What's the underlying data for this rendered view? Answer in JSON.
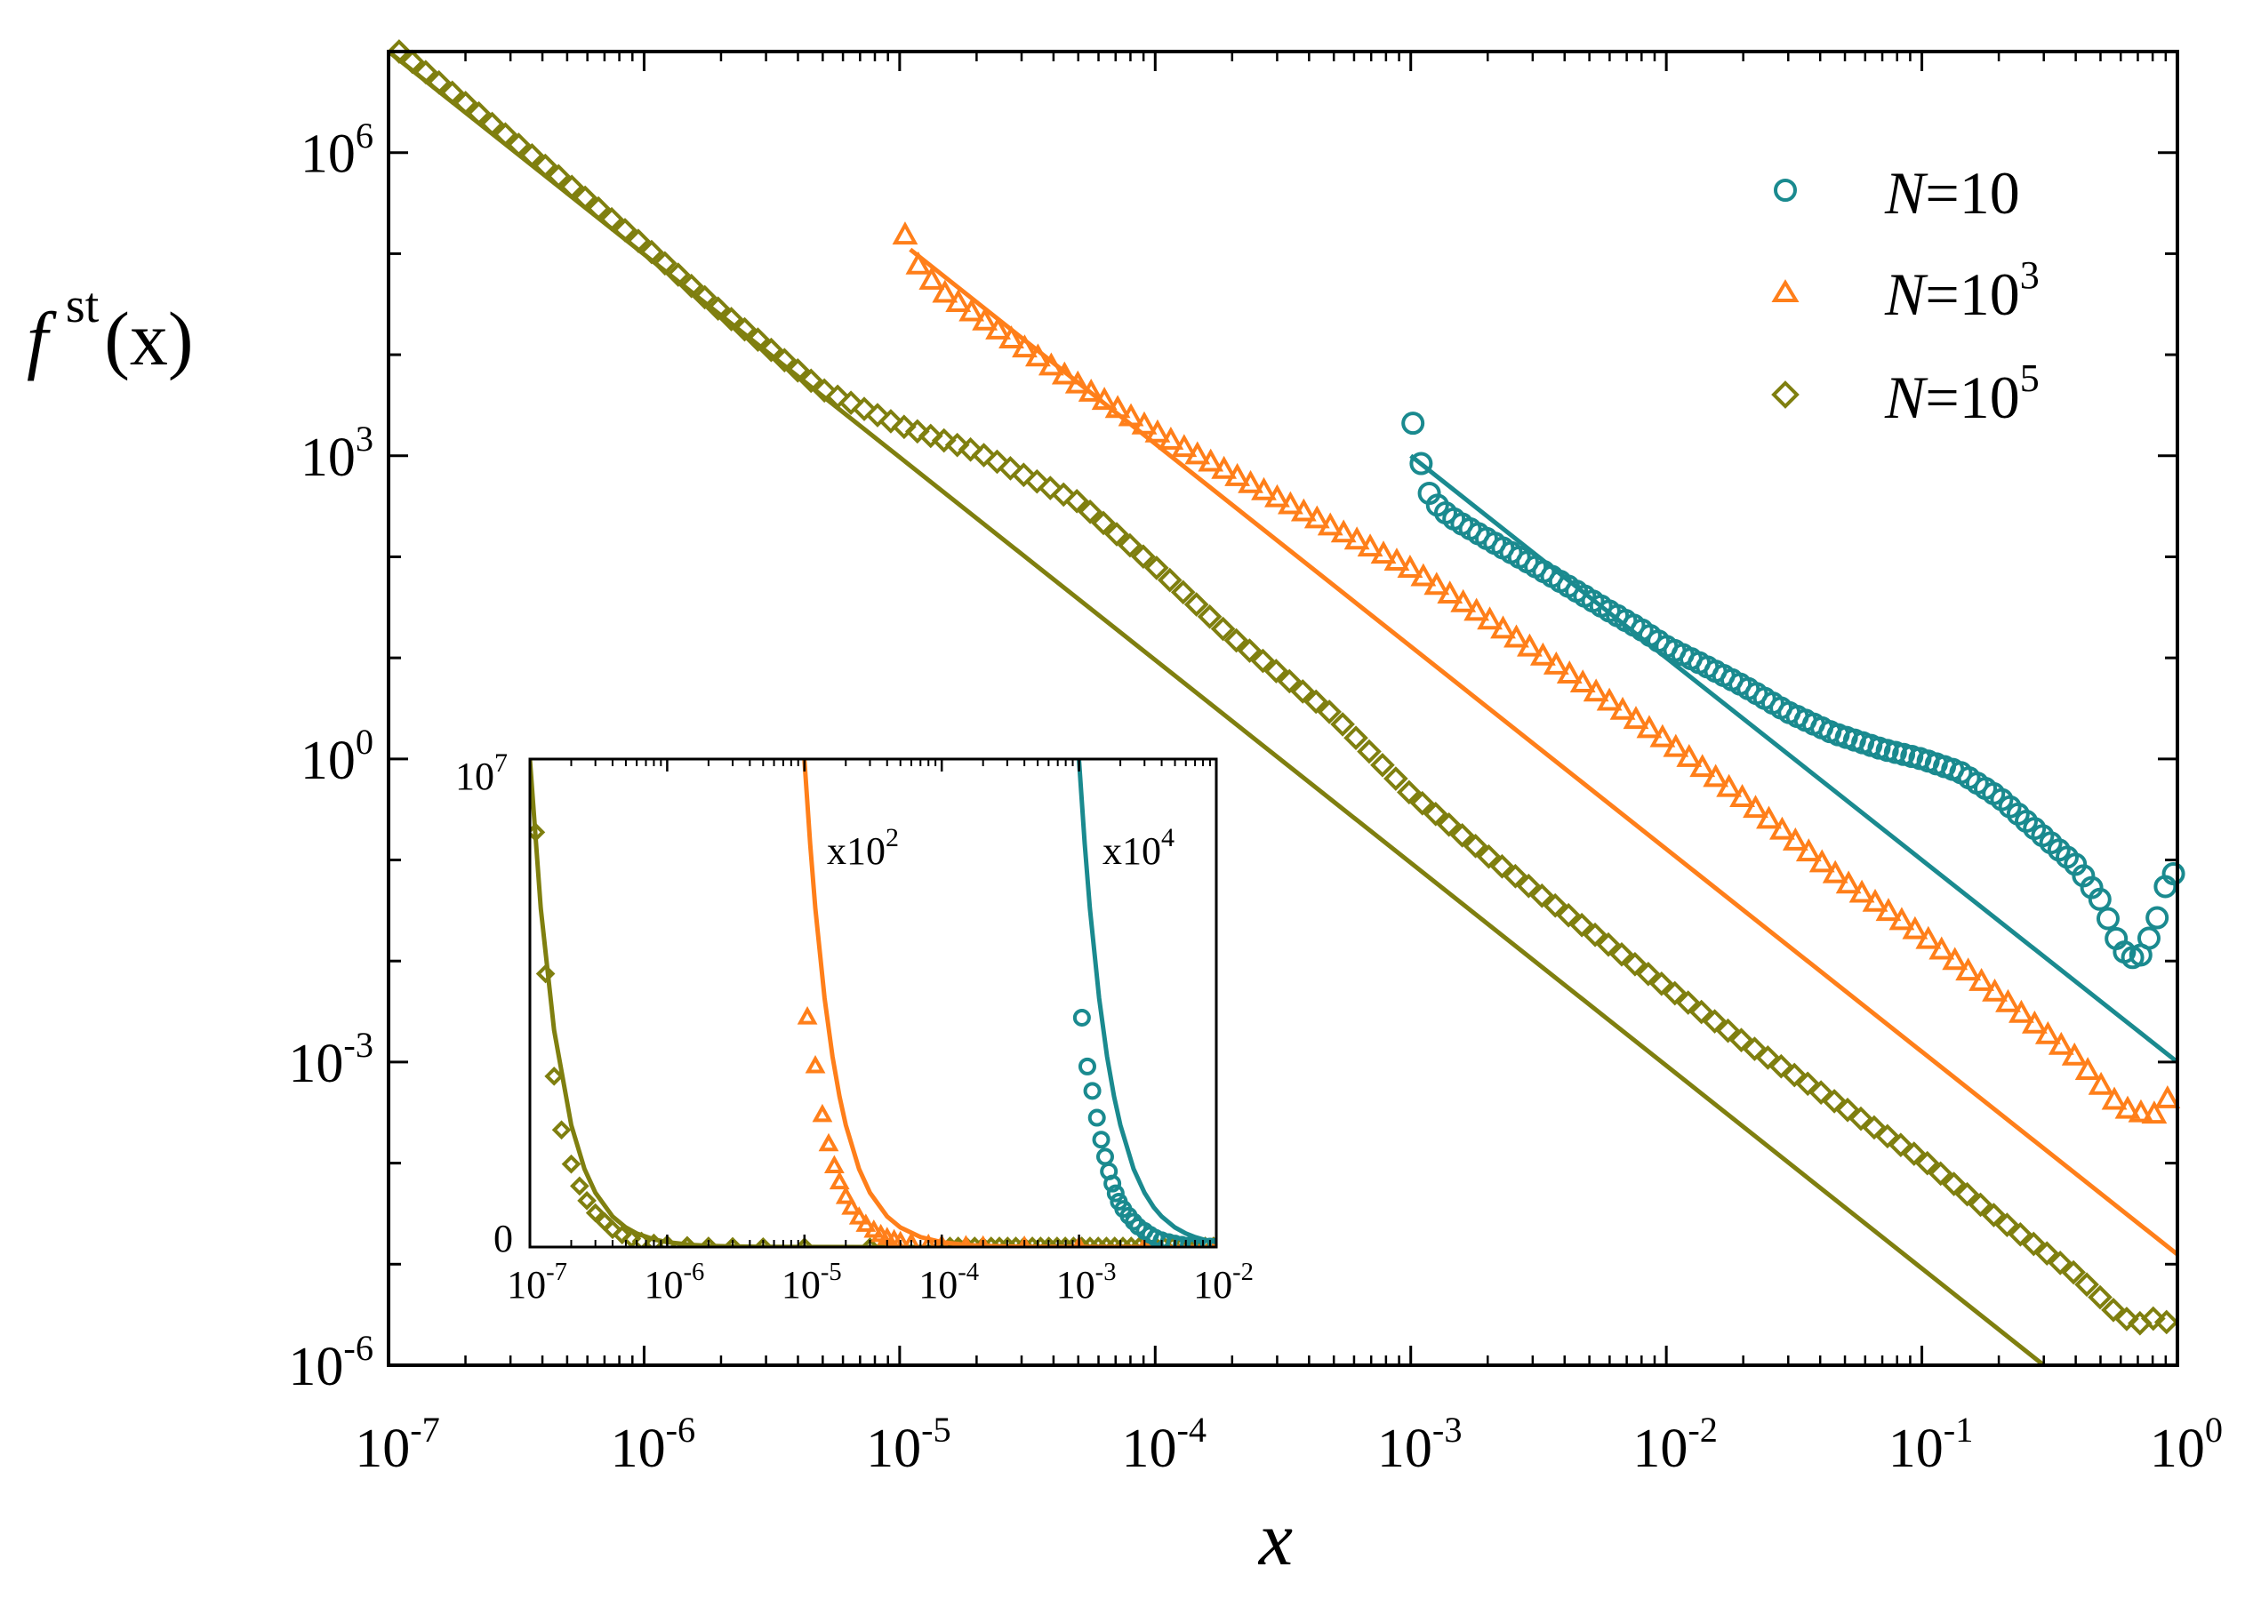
{
  "colors": {
    "n10": "#1a8a8f",
    "n1000": "#ff7f1a",
    "n100000": "#7f7f0f",
    "axis": "#000000"
  },
  "axes": {
    "xlabel": "x",
    "ylabel_base": "f",
    "ylabel_sup": "st",
    "ylabel_args": "(x)",
    "x_ticks": [
      {
        "base": "10",
        "exp": "-7"
      },
      {
        "base": "10",
        "exp": "-6"
      },
      {
        "base": "10",
        "exp": "-5"
      },
      {
        "base": "10",
        "exp": "-4"
      },
      {
        "base": "10",
        "exp": "-3"
      },
      {
        "base": "10",
        "exp": "-2"
      },
      {
        "base": "10",
        "exp": "-1"
      },
      {
        "base": "10",
        "exp": "0"
      }
    ],
    "y_ticks": [
      {
        "base": "10",
        "exp": "-6"
      },
      {
        "base": "10",
        "exp": "-3"
      },
      {
        "base": "10",
        "exp": "0"
      },
      {
        "base": "10",
        "exp": "3"
      },
      {
        "base": "10",
        "exp": "6"
      }
    ]
  },
  "legend": [
    {
      "series": "n10",
      "prefix": "N",
      "eq": "=10",
      "sup": ""
    },
    {
      "series": "n1000",
      "prefix": "N",
      "eq": "=10",
      "sup": "3"
    },
    {
      "series": "n100000",
      "prefix": "N",
      "eq": "=10",
      "sup": "5"
    }
  ],
  "inset": {
    "y_top": "10",
    "y_top_sup": "7",
    "y_bottom": "0",
    "label_n1000": "x10",
    "label_n1000_sup": "2",
    "label_n10": "x10",
    "label_n10_sup": "4",
    "x_ticks": [
      {
        "base": "10",
        "exp": "-7"
      },
      {
        "base": "10",
        "exp": "-6"
      },
      {
        "base": "10",
        "exp": "-5"
      },
      {
        "base": "10",
        "exp": "-4"
      },
      {
        "base": "10",
        "exp": "-3"
      },
      {
        "base": "10",
        "exp": "-2"
      }
    ]
  },
  "chart_data": {
    "type": "scatter",
    "xscale": "log",
    "yscale": "log",
    "xlim": [
      1e-07,
      1
    ],
    "ylim": [
      1e-06,
      10000000.0
    ],
    "xlabel": "x",
    "ylabel": "f^st(x)",
    "legend_position": "top-right",
    "series": [
      {
        "key": "n10",
        "name": "N=10",
        "marker": "circle",
        "points": [
          [
            0.00102,
            2100
          ],
          [
            0.00115,
            470
          ],
          [
            0.0013,
            300
          ],
          [
            0.0015,
            230
          ],
          [
            0.0018,
            175
          ],
          [
            0.0022,
            130
          ],
          [
            0.0028,
            92
          ],
          [
            0.0035,
            66
          ],
          [
            0.0045,
            45
          ],
          [
            0.006,
            29
          ],
          [
            0.008,
            19
          ],
          [
            0.01,
            13
          ],
          [
            0.014,
            8.5
          ],
          [
            0.02,
            5.3
          ],
          [
            0.03,
            2.9
          ],
          [
            0.045,
            1.8
          ],
          [
            0.07,
            1.25
          ],
          [
            0.1,
            1.0
          ],
          [
            0.14,
            0.75
          ],
          [
            0.2,
            0.42
          ],
          [
            0.3,
            0.17
          ],
          [
            0.4,
            0.09
          ],
          [
            0.5,
            0.04
          ],
          [
            0.6,
            0.013
          ],
          [
            0.7,
            0.01
          ],
          [
            0.8,
            0.02
          ],
          [
            0.88,
            0.04
          ],
          [
            0.93,
            0.1
          ],
          [
            0.97,
            0.07
          ]
        ],
        "fit_line": [
          [
            0.001,
            1000
          ],
          [
            1,
            0.001
          ]
        ]
      },
      {
        "key": "n1000",
        "name": "N=10^3",
        "marker": "triangle",
        "points": [
          [
            1.05e-05,
            150000
          ],
          [
            1.2e-05,
            70000
          ],
          [
            1.5e-05,
            40000
          ],
          [
            2e-05,
            24000
          ],
          [
            3e-05,
            12000
          ],
          [
            5e-05,
            5000
          ],
          [
            0.0001,
            1700
          ],
          [
            0.0002,
            650
          ],
          [
            0.0005,
            190
          ],
          [
            0.001,
            75
          ],
          [
            0.002,
            24
          ],
          [
            0.005,
            5
          ],
          [
            0.01,
            1.5
          ],
          [
            0.02,
            0.4
          ],
          [
            0.05,
            0.06
          ],
          [
            0.1,
            0.018
          ],
          [
            0.2,
            0.0045
          ],
          [
            0.4,
            0.0011
          ],
          [
            0.6,
            0.00035
          ],
          [
            0.75,
            0.0003
          ],
          [
            0.88,
            0.0003
          ],
          [
            0.95,
            0.0006
          ],
          [
            0.99,
            0.0002
          ]
        ],
        "fit_line": [
          [
            1.1e-05,
            110000
          ],
          [
            1,
            1.25e-05
          ]
        ]
      },
      {
        "key": "n100000",
        "name": "N=10^5",
        "marker": "diamond",
        "points": [
          [
            1.1e-07,
            10000000
          ],
          [
            2e-07,
            3100000
          ],
          [
            5e-07,
            500000
          ],
          [
            1e-06,
            120000
          ],
          [
            2e-06,
            27000
          ],
          [
            5e-06,
            4500
          ],
          [
            1e-05,
            2000
          ],
          [
            2e-05,
            1100
          ],
          [
            5e-05,
            350
          ],
          [
            0.0001,
            80
          ],
          [
            0.0002,
            16
          ],
          [
            0.0005,
            2.7
          ],
          [
            0.001,
            0.45
          ],
          [
            0.002,
            0.11
          ],
          [
            0.005,
            0.02
          ],
          [
            0.01,
            0.0055
          ],
          [
            0.02,
            0.0016
          ],
          [
            0.05,
            0.00035
          ],
          [
            0.1,
            0.00011
          ],
          [
            0.2,
            2.8e-05
          ],
          [
            0.4,
            8e-06
          ],
          [
            0.6,
            3e-06
          ],
          [
            0.75,
            2.5e-06
          ],
          [
            0.88,
            3.5e-06
          ],
          [
            0.99,
            1.2e-06
          ]
        ],
        "fit_line": [
          [
            1e-07,
            10000000
          ],
          [
            0.3,
            1e-06
          ]
        ]
      }
    ],
    "inset": {
      "xscale": "log",
      "yscale": "linear",
      "xlim": [
        1e-07,
        0.01
      ],
      "ylim": [
        0,
        10000000
      ],
      "series": [
        {
          "key": "n100000",
          "scale_label": "",
          "points": [
            [
              1.1e-07,
              8500000
            ],
            [
              1.3e-07,
              5600000
            ],
            [
              1.5e-07,
              3500000
            ],
            [
              1.7e-07,
              2400000
            ],
            [
              2e-07,
              1700000
            ],
            [
              2.3e-07,
              1250000
            ],
            [
              2.6e-07,
              950000
            ],
            [
              3e-07,
              700000
            ],
            [
              3.5e-07,
              520000
            ],
            [
              4e-07,
              360000
            ],
            [
              4.7e-07,
              250000
            ],
            [
              5.5e-07,
              170000
            ],
            [
              6.5e-07,
              120000
            ],
            [
              8e-07,
              80000
            ],
            [
              1e-06,
              50000
            ],
            [
              1.4e-06,
              30000
            ],
            [
              2e-06,
              18000
            ],
            [
              3e-06,
              9000
            ],
            [
              5e-06,
              4000
            ],
            [
              1e-05,
              1500
            ],
            [
              3e-05,
              500
            ],
            [
              0.0001,
              150
            ]
          ],
          "curve": [
            [
              1e-07,
              10000000
            ],
            [
              1.2e-07,
              6944444
            ],
            [
              1.5e-07,
              4444444
            ],
            [
              2e-07,
              2500000
            ],
            [
              2.5e-07,
              1600000
            ],
            [
              3e-07,
              1111111
            ],
            [
              4e-07,
              625000
            ],
            [
              5e-07,
              400000
            ],
            [
              6e-07,
              277778
            ],
            [
              8e-07,
              156250
            ],
            [
              1e-06,
              100000
            ],
            [
              1.5e-06,
              44444
            ],
            [
              2e-06,
              25000
            ],
            [
              3e-06,
              11111
            ],
            [
              5e-06,
              4000
            ],
            [
              1e-05,
              1000
            ],
            [
              3e-05,
              111
            ],
            [
              0.0001,
              10
            ],
            [
              0.001,
              0.1
            ],
            [
              0.01,
              0.001
            ]
          ]
        },
        {
          "key": "n1000",
          "scale_label": "x10^2",
          "points": [
            [
              1.05e-05,
              4700000
            ],
            [
              1.2e-05,
              3700000
            ],
            [
              1.35e-05,
              2700000
            ],
            [
              1.5e-05,
              2100000
            ],
            [
              1.65e-05,
              1650000
            ],
            [
              1.8e-05,
              1320000
            ],
            [
              2e-05,
              1020000
            ],
            [
              2.2e-05,
              800000
            ],
            [
              2.5e-05,
              600000
            ],
            [
              2.8e-05,
              450000
            ],
            [
              3.2e-05,
              330000
            ],
            [
              3.6e-05,
              240000
            ],
            [
              4e-05,
              180000
            ],
            [
              4.5e-05,
              135000
            ],
            [
              5e-05,
              100000
            ],
            [
              6e-05,
              70000
            ],
            [
              8e-05,
              40000
            ],
            [
              0.0001,
              25000
            ],
            [
              0.00015,
              12000
            ],
            [
              0.0002,
              7000
            ],
            [
              0.0004,
              2000
            ],
            [
              0.001,
              300
            ],
            [
              0.003,
              40
            ],
            [
              0.01,
              5
            ]
          ],
          "curve": [
            [
              9.99e-06,
              10000000
            ],
            [
              1.1e-05,
              8264463
            ],
            [
              1.2e-05,
              6944444
            ],
            [
              1.4e-05,
              5102041
            ],
            [
              1.6e-05,
              3906250
            ],
            [
              1.8e-05,
              3086420
            ],
            [
              2e-05,
              2500000
            ],
            [
              2.5e-05,
              1600000
            ],
            [
              3e-05,
              1111111
            ],
            [
              4e-05,
              625000
            ],
            [
              5e-05,
              400000
            ],
            [
              7e-05,
              204082
            ],
            [
              0.0001,
              100000
            ],
            [
              0.00015,
              44444
            ],
            [
              0.0002,
              25000
            ],
            [
              0.0003,
              11111
            ],
            [
              0.0005,
              4000
            ],
            [
              0.001,
              1000
            ],
            [
              0.003,
              111
            ],
            [
              0.01,
              10
            ]
          ]
        },
        {
          "key": "n10",
          "scale_label": "x10^4",
          "points": [
            [
              0.00105,
              4700000
            ],
            [
              0.00115,
              3700000
            ],
            [
              0.00125,
              3200000
            ],
            [
              0.00135,
              2650000
            ],
            [
              0.00145,
              2200000
            ],
            [
              0.00155,
              1850000
            ],
            [
              0.00165,
              1550000
            ],
            [
              0.00175,
              1300000
            ],
            [
              0.00185,
              1100000
            ],
            [
              0.00195,
              930000
            ],
            [
              0.0021,
              780000
            ],
            [
              0.0023,
              640000
            ],
            [
              0.0025,
              520000
            ],
            [
              0.0027,
              420000
            ],
            [
              0.003,
              330000
            ],
            [
              0.0033,
              250000
            ],
            [
              0.0036,
              190000
            ],
            [
              0.004,
              140000
            ],
            [
              0.0045,
              100000
            ],
            [
              0.005,
              70000
            ],
            [
              0.0056,
              45000
            ],
            [
              0.0063,
              30000
            ],
            [
              0.007,
              20000
            ],
            [
              0.008,
              12000
            ],
            [
              0.009,
              8000
            ],
            [
              0.01,
              5000
            ]
          ],
          "curve": [
            [
              0.000999,
              10000000
            ],
            [
              0.0011,
              8264463
            ],
            [
              0.0012,
              6944444
            ],
            [
              0.0014,
              5102041
            ],
            [
              0.0016,
              3906250
            ],
            [
              0.0018,
              3086420
            ],
            [
              0.002,
              2500000
            ],
            [
              0.0025,
              1600000
            ],
            [
              0.003,
              1111111
            ],
            [
              0.0035,
              816327
            ],
            [
              0.004,
              625000
            ],
            [
              0.005,
              400000
            ],
            [
              0.006,
              277778
            ],
            [
              0.007,
              204082
            ],
            [
              0.008,
              156250
            ],
            [
              0.01,
              100000
            ]
          ]
        }
      ]
    }
  }
}
